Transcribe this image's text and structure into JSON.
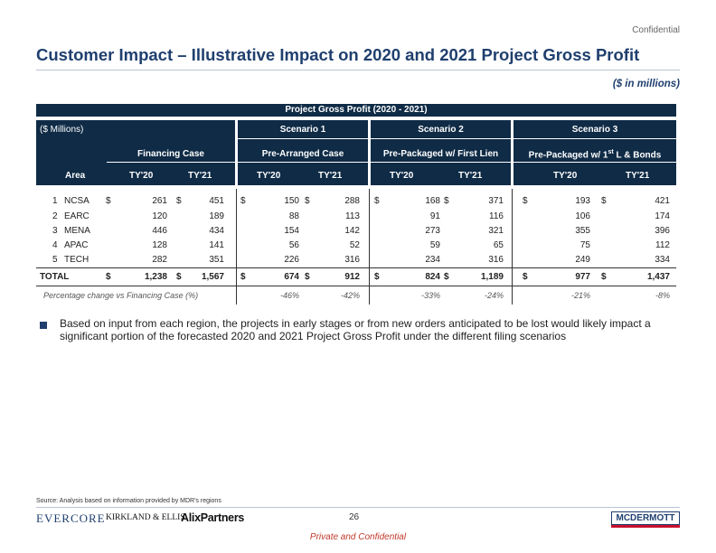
{
  "header": {
    "confidential": "Confidential",
    "title": "Customer Impact – Illustrative Impact on 2020 and 2021 Project Gross Profit",
    "units": "($ in millions)"
  },
  "table": {
    "title": "Project Gross Profit (2020 - 2021)",
    "corner_label": "($ Millions)",
    "area_label": "Area",
    "groups": [
      {
        "scenario": "",
        "case": "Financing Case"
      },
      {
        "scenario": "Scenario 1",
        "case": "Pre-Arranged Case"
      },
      {
        "scenario": "Scenario 2",
        "case": "Pre-Packaged w/ First Lien"
      },
      {
        "scenario": "Scenario 3",
        "case_pre": "Pre-Packaged w/ 1",
        "case_sup": "st",
        "case_post": " L & Bonds"
      }
    ],
    "year_labels": [
      "TY'20",
      "TY'21"
    ],
    "currency": "$",
    "rows": [
      {
        "num": "1",
        "area": "NCSA",
        "values": [
          "261",
          "451",
          "150",
          "288",
          "168",
          "371",
          "193",
          "421"
        ]
      },
      {
        "num": "2",
        "area": "EARC",
        "values": [
          "120",
          "189",
          "88",
          "113",
          "91",
          "116",
          "106",
          "174"
        ]
      },
      {
        "num": "3",
        "area": "MENA",
        "values": [
          "446",
          "434",
          "154",
          "142",
          "273",
          "321",
          "355",
          "396"
        ]
      },
      {
        "num": "4",
        "area": "APAC",
        "values": [
          "128",
          "141",
          "56",
          "52",
          "59",
          "65",
          "75",
          "112"
        ]
      },
      {
        "num": "5",
        "area": "TECH",
        "values": [
          "282",
          "351",
          "226",
          "316",
          "234",
          "316",
          "249",
          "334"
        ]
      }
    ],
    "total": {
      "label": "TOTAL",
      "values": [
        "1,238",
        "1,567",
        "674",
        "912",
        "824",
        "1,189",
        "977",
        "1,437"
      ]
    },
    "pct_change": {
      "label": "Percentage change vs Financing Case (%)",
      "values": [
        "-46%",
        "-42%",
        "-33%",
        "-24%",
        "-21%",
        "-8%"
      ]
    }
  },
  "bullet": "Based on input from each region, the projects in early stages or from new orders anticipated to be lost would likely impact a significant portion of the forecasted 2020 and 2021 Project Gross Profit under the different filing scenarios",
  "footer": {
    "source": "Source: Analysis based on information provided by MDR's regions",
    "logos": [
      "EVERCORE",
      "KIRKLAND & ELLIS",
      "AlixPartners",
      "MCDERMOTT"
    ],
    "page_number": "26",
    "private": "Private and Confidential"
  },
  "colors": {
    "navy": "#0f2b46",
    "title_blue": "#1f3f6e",
    "private_red": "#c0392b"
  }
}
